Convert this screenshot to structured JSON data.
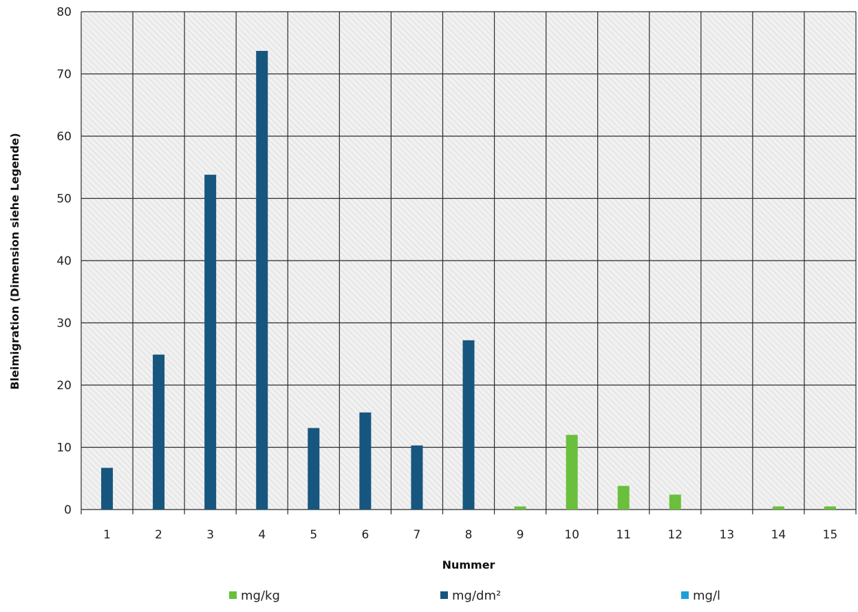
{
  "chart_data": {
    "type": "bar",
    "title": "",
    "xlabel": "Nummer",
    "ylabel": "Bleimigration (Dimension siehe Legende)",
    "ylim": [
      0,
      80
    ],
    "yticks": [
      0,
      10,
      20,
      30,
      40,
      50,
      60,
      70,
      80
    ],
    "categories": [
      "1",
      "2",
      "3",
      "4",
      "5",
      "6",
      "7",
      "8",
      "9",
      "10",
      "11",
      "12",
      "13",
      "14",
      "15"
    ],
    "grid": true,
    "legend_position": "bottom",
    "series": [
      {
        "name": "mg/kg",
        "color": "#6abf3c",
        "values": [
          null,
          null,
          null,
          null,
          null,
          null,
          null,
          null,
          0.5,
          12,
          3.8,
          2.4,
          null,
          0.5,
          0.5
        ]
      },
      {
        "name": "mg/dm²",
        "color": "#17567e",
        "values": [
          6.7,
          24.9,
          53.8,
          73.7,
          13.1,
          15.6,
          10.3,
          27.2,
          null,
          null,
          null,
          null,
          null,
          null,
          null
        ]
      },
      {
        "name": "mg/l",
        "color": "#1ba1d8",
        "values": [
          null,
          null,
          null,
          null,
          null,
          null,
          null,
          null,
          null,
          null,
          null,
          null,
          null,
          null,
          null
        ]
      }
    ]
  }
}
